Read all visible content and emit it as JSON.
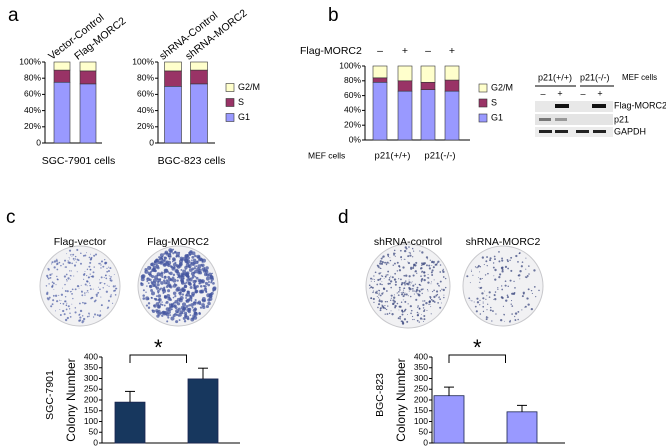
{
  "chart_data": [
    {
      "type": "stacked_bar",
      "categories": [
        "Vector-Control",
        "Flag-MORC2"
      ],
      "series": [
        {
          "name": "G1",
          "color": "#9999ff",
          "values": [
            75,
            73
          ]
        },
        {
          "name": "S",
          "color": "#993366",
          "values": [
            15,
            16
          ]
        },
        {
          "name": "G2/M",
          "color": "#ffffcc",
          "values": [
            10,
            11
          ]
        }
      ],
      "ylim": [
        0,
        100
      ],
      "yticks": [
        {
          "value": 0,
          "label": "0"
        },
        {
          "value": 20,
          "label": "20%"
        },
        {
          "value": 40,
          "label": "40%"
        },
        {
          "value": 60,
          "label": "60%"
        },
        {
          "value": 80,
          "label": "80%"
        },
        {
          "value": 100,
          "label": "100%"
        }
      ],
      "xlabel": "SGC-7901 cells",
      "legend": false
    },
    {
      "type": "stacked_bar",
      "categories": [
        "shRNA-Control",
        "shRNA-MORC2"
      ],
      "series": [
        {
          "name": "G1",
          "color": "#9999ff",
          "values": [
            70,
            73
          ]
        },
        {
          "name": "S",
          "color": "#993366",
          "values": [
            19,
            17
          ]
        },
        {
          "name": "G2/M",
          "color": "#ffffcc",
          "values": [
            11,
            10
          ]
        }
      ],
      "ylim": [
        0,
        100
      ],
      "yticks": [
        {
          "value": 0,
          "label": "0"
        },
        {
          "value": 20,
          "label": "20%"
        },
        {
          "value": 40,
          "label": "40%"
        },
        {
          "value": 60,
          "label": "60%"
        },
        {
          "value": 80,
          "label": "80%"
        },
        {
          "value": 100,
          "label": "100%"
        }
      ],
      "xlabel": "BGC-823  cells",
      "legend": true
    },
    {
      "type": "stacked_bar",
      "categories": [
        "–",
        "+",
        "–",
        "+"
      ],
      "series": [
        {
          "name": "G1",
          "color": "#9999ff",
          "values": [
            78,
            66,
            68,
            66
          ]
        },
        {
          "name": "S",
          "color": "#993366",
          "values": [
            6,
            14,
            10,
            15
          ]
        },
        {
          "name": "G2/M",
          "color": "#ffffcc",
          "values": [
            16,
            20,
            22,
            19
          ]
        }
      ],
      "ylim": [
        0,
        100
      ],
      "yticks": [
        {
          "value": 0,
          "label": "0%"
        },
        {
          "value": 20,
          "label": "20%"
        },
        {
          "value": 40,
          "label": "40%"
        },
        {
          "value": 60,
          "label": "60%"
        },
        {
          "value": 80,
          "label": "80%"
        },
        {
          "value": 100,
          "label": "100%"
        }
      ],
      "row_label": "Flag-MORC2",
      "cells_label": "MEF cells",
      "groups": [
        "p21(+/+)",
        "p21(-/-)"
      ],
      "legend": true
    },
    {
      "type": "bar",
      "categories": [
        null,
        null
      ],
      "values": [
        190,
        298
      ],
      "errors": [
        50,
        50
      ],
      "color": "#17375e",
      "ylim": [
        0,
        400
      ],
      "yticks": [
        0,
        50,
        100,
        150,
        200,
        250,
        300,
        350,
        400
      ],
      "ylabel": "Colony Number",
      "cell_line": "SGC-7901",
      "annotation": "*"
    },
    {
      "type": "bar",
      "categories": [
        null,
        null
      ],
      "values": [
        220,
        145
      ],
      "errors": [
        40,
        30
      ],
      "color": "#9999ff",
      "ylim": [
        0,
        400
      ],
      "yticks": [
        0,
        50,
        100,
        150,
        200,
        250,
        300,
        350,
        400
      ],
      "ylabel": "Colony Number",
      "cell_line": "BGC-823",
      "annotation": "*"
    }
  ],
  "figure": {
    "panels": [
      "a",
      "b",
      "c",
      "d"
    ],
    "plates_c": [
      "Flag-vector",
      "Flag-MORC2"
    ],
    "plates_d": [
      "shRNA-control",
      "shRNA-MORC2"
    ],
    "blot": {
      "genotypes": [
        "p21(+/+)",
        "p21(-/-)"
      ],
      "cells": "MEF cells",
      "lanes": [
        "–",
        "+",
        "–",
        "+"
      ],
      "rows": [
        "Flag-MORC2",
        "p21",
        "GAPDH"
      ]
    }
  }
}
